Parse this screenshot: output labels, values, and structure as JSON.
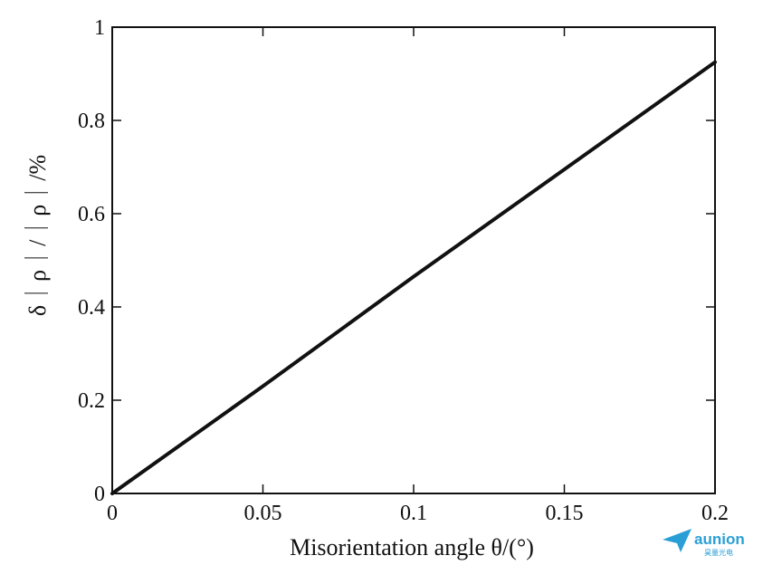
{
  "chart_data": {
    "type": "line",
    "title": "",
    "xlabel": "Misorientation angle θ/(°)",
    "ylabel": "δ｜ρ｜/｜ρ｜/%",
    "xlim": [
      0,
      0.2
    ],
    "ylim": [
      0,
      1
    ],
    "x_ticks": [
      "0",
      "0.05",
      "0.1",
      "0.15",
      "0.2"
    ],
    "y_ticks": [
      "0",
      "0.2",
      "0.4",
      "0.6",
      "0.8",
      "1"
    ],
    "grid": false,
    "legend": "none",
    "series": [
      {
        "x": [
          0,
          0.05,
          0.1,
          0.15,
          0.2
        ],
        "y": [
          0,
          0.23,
          0.465,
          0.695,
          0.925
        ]
      }
    ]
  },
  "watermark": {
    "brand": "aunion",
    "subtitle": "昊量光电",
    "color": "#2a9fd6"
  }
}
